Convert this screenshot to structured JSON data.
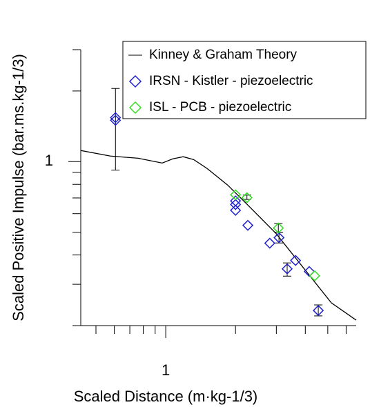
{
  "chart_data": {
    "type": "scatter",
    "xlabel": "Scaled Distance (m·kg-1/3)",
    "ylabel": "Scaled Positive Impulse (bar.ms.kg-1/3)",
    "xscale": "log",
    "yscale": "log",
    "xlim": [
      0.43,
      6.63
    ],
    "ylim": [
      0.2,
      3.0
    ],
    "xticks": [
      1
    ],
    "yticks": [
      1
    ],
    "xminor_ticks": [
      0.5,
      0.6,
      0.7,
      0.8,
      0.9,
      2,
      3,
      4,
      5,
      6
    ],
    "yminor_ticks": [
      0.2,
      0.3,
      0.4,
      0.5,
      0.6,
      0.7,
      0.8,
      0.9,
      2,
      3
    ],
    "legend": "upper right",
    "series": [
      {
        "name": "Kinney & Graham Theory",
        "kind": "line",
        "color": "#000000",
        "x": [
          0.43,
          0.578,
          0.76,
          0.966,
          1.07,
          1.19,
          1.32,
          1.51,
          1.85,
          2.28,
          2.99,
          3.94,
          5.18,
          6.63
        ],
        "values": [
          1.115,
          1.056,
          1.034,
          0.986,
          1.027,
          1.049,
          1.02,
          0.934,
          0.794,
          0.647,
          0.494,
          0.351,
          0.25,
          0.211
        ]
      },
      {
        "name": "IRSN - Kistler - piezoelectric",
        "kind": "diamond",
        "color": "#1f1fd0",
        "x": [
          0.607,
          0.607,
          2.0,
          2.0,
          2.0,
          2.26,
          2.81,
          3.08,
          3.34,
          3.63,
          4.16,
          4.55
        ],
        "values": [
          1.5,
          1.54,
          0.68,
          0.62,
          0.656,
          0.535,
          0.449,
          0.474,
          0.349,
          0.379,
          0.34,
          0.232
        ]
      },
      {
        "name": "ISL - PCB - piezoelectric",
        "kind": "diamond",
        "color": "#33dd22",
        "x": [
          2.0,
          2.24,
          3.06,
          4.39
        ],
        "values": [
          0.722,
          0.702,
          0.521,
          0.326
        ]
      }
    ],
    "error_bars": [
      {
        "x": 0.607,
        "low": 0.92,
        "high": 2.05
      },
      {
        "x": 2.24,
        "low": 0.69,
        "high": 0.72
      },
      {
        "x": 3.06,
        "low": 0.5,
        "high": 0.545
      },
      {
        "x": 3.08,
        "low": 0.45,
        "high": 0.5
      },
      {
        "x": 3.34,
        "low": 0.325,
        "high": 0.37
      },
      {
        "x": 4.55,
        "low": 0.22,
        "high": 0.245
      }
    ]
  }
}
